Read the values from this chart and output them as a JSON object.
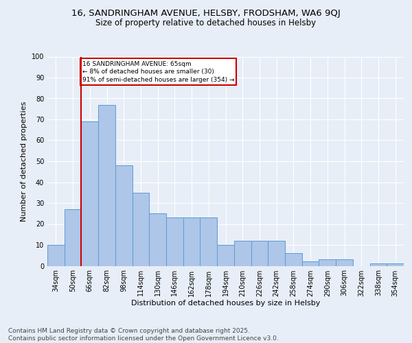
{
  "title1": "16, SANDRINGHAM AVENUE, HELSBY, FRODSHAM, WA6 9QJ",
  "title2": "Size of property relative to detached houses in Helsby",
  "xlabel": "Distribution of detached houses by size in Helsby",
  "ylabel": "Number of detached properties",
  "categories": [
    "34sqm",
    "50sqm",
    "66sqm",
    "82sqm",
    "98sqm",
    "114sqm",
    "130sqm",
    "146sqm",
    "162sqm",
    "178sqm",
    "194sqm",
    "210sqm",
    "226sqm",
    "242sqm",
    "258sqm",
    "274sqm",
    "290sqm",
    "306sqm",
    "322sqm",
    "338sqm",
    "354sqm"
  ],
  "values": [
    10,
    27,
    69,
    77,
    48,
    35,
    25,
    23,
    23,
    23,
    10,
    12,
    12,
    12,
    6,
    2,
    3,
    3,
    0,
    1,
    1
  ],
  "bar_color": "#aec6e8",
  "bar_edge_color": "#5b9bd5",
  "ref_line_color": "#cc0000",
  "annotation_box_color": "#cc0000",
  "ylim": [
    0,
    100
  ],
  "yticks": [
    0,
    10,
    20,
    30,
    40,
    50,
    60,
    70,
    80,
    90,
    100
  ],
  "bg_color": "#e8eef7",
  "plot_bg_color": "#e8eef7",
  "footer_text": "Contains HM Land Registry data © Crown copyright and database right 2025.\nContains public sector information licensed under the Open Government Licence v3.0.",
  "title1_fontsize": 9.5,
  "title2_fontsize": 8.5,
  "xlabel_fontsize": 8,
  "ylabel_fontsize": 8,
  "tick_fontsize": 7,
  "footer_fontsize": 6.5,
  "annot_fontsize": 6.5
}
